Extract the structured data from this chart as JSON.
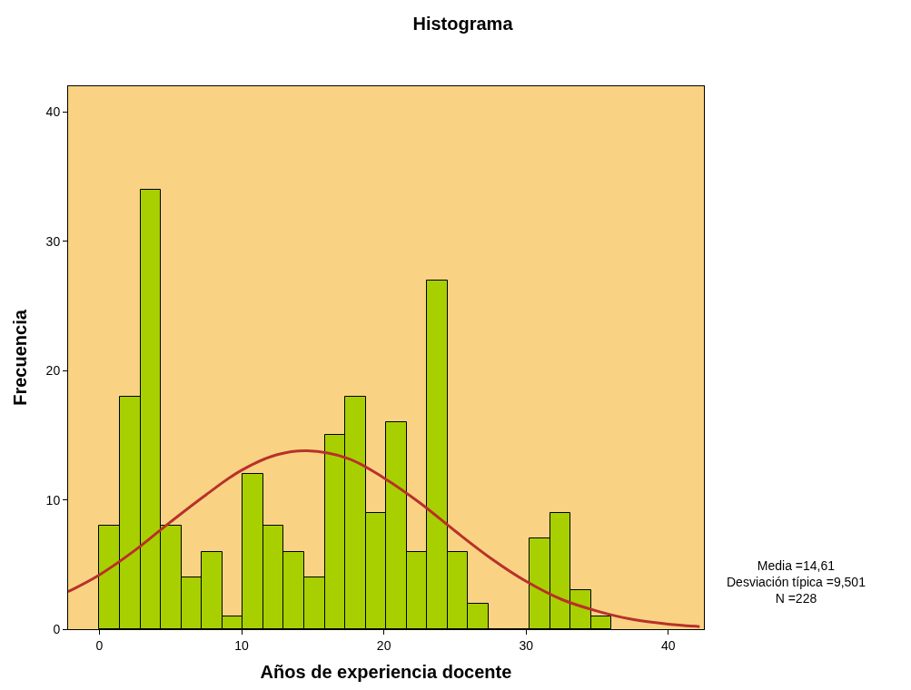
{
  "chart_data": {
    "type": "histogram",
    "title": "Histograma",
    "xlabel": "Años de experiencia docente",
    "ylabel": "Frecuencia",
    "bins": [
      0,
      1.44,
      2.88,
      4.32,
      5.76,
      7.2,
      8.64,
      10.08,
      11.52,
      12.96,
      14.4,
      15.84,
      17.28,
      18.72,
      20.16,
      21.6,
      23.04,
      24.48,
      25.92,
      27.36,
      28.8,
      30.24,
      31.68,
      33.12,
      34.56,
      36
    ],
    "values": [
      8,
      18,
      34,
      8,
      4,
      6,
      1,
      12,
      8,
      6,
      4,
      15,
      18,
      9,
      16,
      6,
      27,
      6,
      2,
      0,
      0,
      7,
      9,
      3,
      1
    ],
    "color": "#a8d000",
    "series": [
      {
        "type": "line",
        "color": "#b8312b",
        "x": [
          -2.2,
          0,
          2.5,
          5,
          7.5,
          10,
          12.5,
          14.6,
          17.5,
          20,
          22.5,
          25,
          27.5,
          30,
          32.5,
          35,
          37.5,
          40,
          42.2
        ],
        "values": [
          2.9,
          4.2,
          6.1,
          8.3,
          10.4,
          12.3,
          13.5,
          13.8,
          13.2,
          11.7,
          9.8,
          7.6,
          5.5,
          3.7,
          2.3,
          1.4,
          0.75,
          0.39,
          0.2
        ]
      }
    ],
    "xlim": [
      -2.2,
      42.5
    ],
    "ylim": [
      0,
      42
    ],
    "xticks": [
      0,
      10,
      20,
      30,
      40
    ],
    "yticks": [
      0,
      10,
      20,
      30,
      40
    ],
    "grid": false,
    "annotations": [
      "Media =14,61",
      "Desviación típica =9,501",
      "N =228"
    ]
  }
}
